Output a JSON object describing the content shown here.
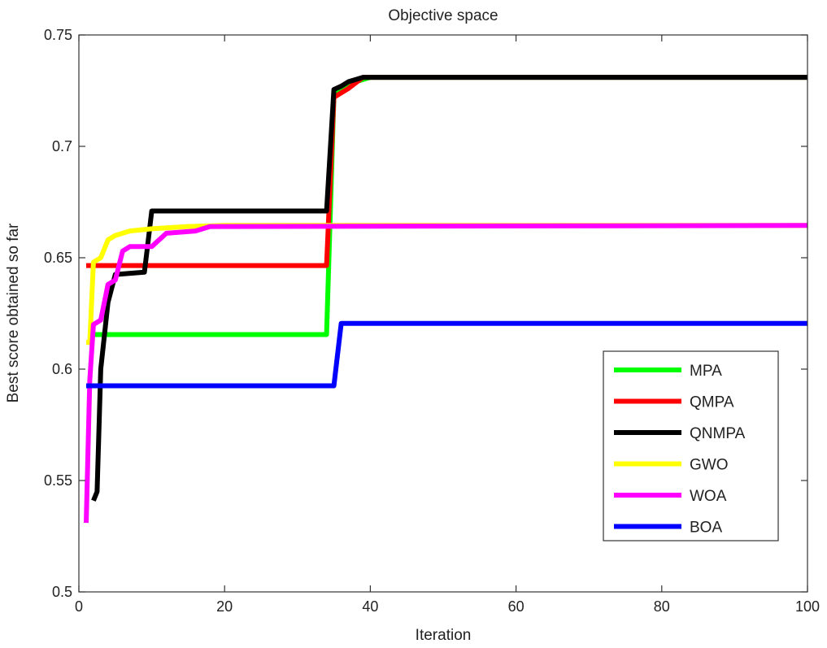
{
  "chart_data": {
    "type": "line",
    "title": "Objective space",
    "xlabel": "Iteration",
    "ylabel": "Best score obtained so far",
    "xlim": [
      0,
      100
    ],
    "ylim": [
      0.5,
      0.75
    ],
    "xticks": [
      "0",
      "20",
      "40",
      "60",
      "80",
      "100"
    ],
    "yticks": [
      "0.5",
      "0.55",
      "0.6",
      "0.65",
      "0.7",
      "0.75"
    ],
    "grid": false,
    "legend_position": "bottom-right",
    "series": [
      {
        "name": "MPA",
        "color": "#00ff00",
        "x": [
          2,
          34,
          35,
          36,
          38,
          40,
          100
        ],
        "y": [
          0.6155,
          0.6155,
          0.7225,
          0.7255,
          0.729,
          0.731,
          0.731
        ]
      },
      {
        "name": "QMPA",
        "color": "#ff0000",
        "x": [
          1,
          34,
          35,
          37,
          39,
          100
        ],
        "y": [
          0.6465,
          0.6465,
          0.722,
          0.726,
          0.731,
          0.731
        ]
      },
      {
        "name": "QNMPA",
        "color": "#000000",
        "x": [
          2,
          2.5,
          3,
          4,
          5,
          9,
          10,
          34,
          35,
          36,
          37,
          39,
          100
        ],
        "y": [
          0.541,
          0.545,
          0.6,
          0.63,
          0.6425,
          0.6435,
          0.671,
          0.671,
          0.7255,
          0.727,
          0.729,
          0.731,
          0.731
        ]
      },
      {
        "name": "GWO",
        "color": "#ffff00",
        "x": [
          1,
          1.5,
          2,
          3,
          4,
          5,
          7,
          10,
          15,
          20,
          100
        ],
        "y": [
          0.612,
          0.612,
          0.648,
          0.65,
          0.658,
          0.66,
          0.662,
          0.663,
          0.664,
          0.6645,
          0.6645
        ]
      },
      {
        "name": "WOA",
        "color": "#ff00ff",
        "x": [
          1,
          1.5,
          2,
          3,
          4,
          5,
          6,
          7,
          10,
          12,
          16,
          18,
          100
        ],
        "y": [
          0.531,
          0.595,
          0.62,
          0.622,
          0.638,
          0.64,
          0.653,
          0.655,
          0.655,
          0.661,
          0.662,
          0.664,
          0.6645
        ]
      },
      {
        "name": "BOA",
        "color": "#0000ff",
        "x": [
          1,
          35,
          36,
          100
        ],
        "y": [
          0.5925,
          0.5925,
          0.6205,
          0.6205
        ]
      }
    ]
  }
}
